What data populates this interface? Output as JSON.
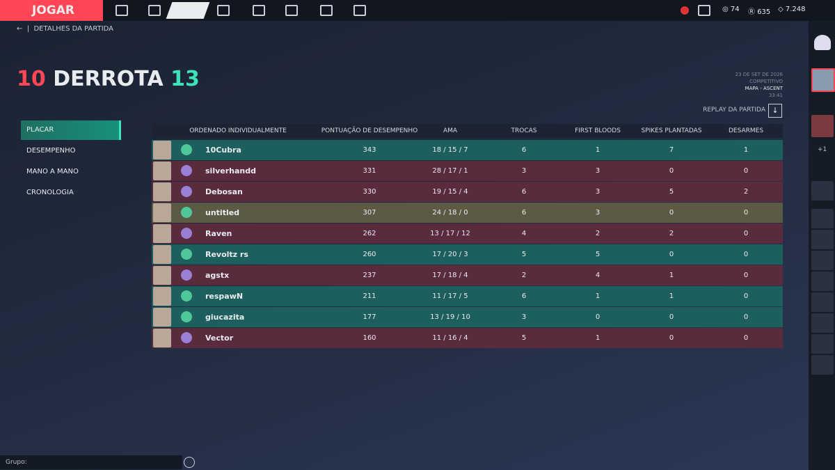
{
  "nav": {
    "play": "JOGAR",
    "currencies": [
      "74",
      "635",
      "7.248"
    ]
  },
  "breadcrumb": "DETALHES DA PARTIDA",
  "result": {
    "team_score": "10",
    "label": "DERROTA",
    "enemy_score": "13"
  },
  "match_info": {
    "date": "23 DE SET DE 2026",
    "mode": "COMPETITIVO",
    "map": "MAPA - ASCENT",
    "duration": "33:41"
  },
  "replay": "REPLAY DA PARTIDA",
  "tabs": [
    "PLACAR",
    "DESEMPENHO",
    "MANO A MANO",
    "CRONOLOGIA"
  ],
  "table": {
    "headers": [
      "ORDENADO INDIVIDUALMENTE",
      "PONTUAÇÃO DE DESEMPENHO",
      "AMA",
      "TROCAS",
      "FIRST BLOODS",
      "SPIKES PLANTADAS",
      "DESARMES"
    ],
    "rows": [
      {
        "color": "#1d5f5d",
        "cells": [
          "10Cubra",
          343,
          "18 / 15 / 7",
          6,
          1,
          7,
          1
        ]
      },
      {
        "color": "#5a2a3d",
        "cells": [
          "silverhandd",
          331,
          "28 / 17 / 1",
          3,
          3,
          0,
          0
        ]
      },
      {
        "color": "#5a2a3d",
        "cells": [
          "Debosan",
          330,
          "19 / 15 / 4",
          6,
          3,
          5,
          2
        ]
      },
      {
        "color": "#5b5a45",
        "cells": [
          "untitled",
          307,
          "24 / 18 / 0",
          6,
          3,
          0,
          0
        ]
      },
      {
        "color": "#5a2a3d",
        "cells": [
          "Raven",
          262,
          "13 / 17 / 12",
          4,
          2,
          2,
          0
        ]
      },
      {
        "color": "#1d5f5d",
        "cells": [
          "Revoltz rs",
          260,
          "17 / 20 / 3",
          5,
          5,
          0,
          0
        ]
      },
      {
        "color": "#5a2a3d",
        "cells": [
          "agstx",
          237,
          "17 / 18 / 4",
          2,
          4,
          1,
          0
        ]
      },
      {
        "color": "#1d5f5d",
        "cells": [
          "respawN",
          211,
          "11 / 17 / 5",
          6,
          1,
          1,
          0
        ]
      },
      {
        "color": "#1d5f5d",
        "cells": [
          "giucazita",
          177,
          "13 / 19 / 10",
          3,
          0,
          0,
          0
        ]
      },
      {
        "color": "#5a2a3d",
        "cells": [
          "Vector",
          160,
          "11 / 16 / 4",
          5,
          1,
          0,
          0
        ]
      }
    ]
  },
  "sidebar": {
    "party_extra": "+1"
  },
  "chat": {
    "label": "Grupo:"
  }
}
